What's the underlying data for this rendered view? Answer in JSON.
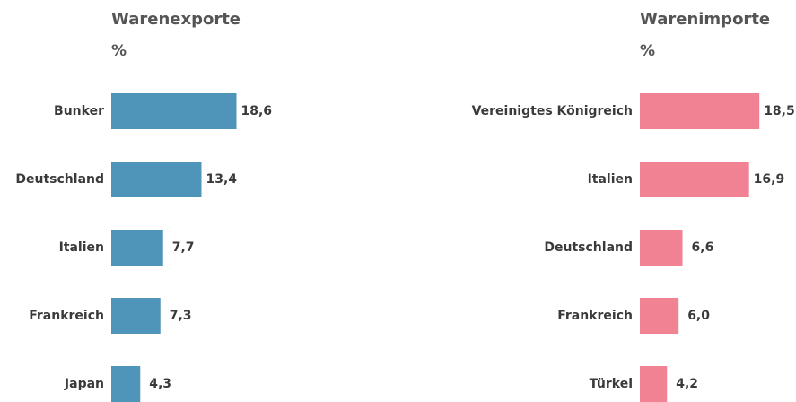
{
  "chart_data": [
    {
      "type": "bar",
      "orientation": "horizontal",
      "title": "Warenexporte",
      "subtitle": "%",
      "categories": [
        "Bunker",
        "Deutschland",
        "Italien",
        "Frankreich",
        "Japan"
      ],
      "values": [
        18.6,
        13.4,
        7.7,
        7.3,
        4.3
      ],
      "value_labels": [
        "18,6",
        "13,4",
        "7,7",
        "7,3",
        "4,3"
      ],
      "color": "#4f95b9",
      "xlim": [
        0,
        20
      ]
    },
    {
      "type": "bar",
      "orientation": "horizontal",
      "title": "Warenimporte",
      "subtitle": "%",
      "categories": [
        "Vereinigtes Königreich",
        "Italien",
        "Deutschland",
        "Frankreich",
        "Türkei"
      ],
      "values": [
        18.5,
        16.9,
        6.6,
        6.0,
        4.2
      ],
      "value_labels": [
        "18,5",
        "16,9",
        "6,6",
        "6,0",
        "4,2"
      ],
      "color": "#f08293",
      "xlim": [
        0,
        20
      ]
    }
  ]
}
